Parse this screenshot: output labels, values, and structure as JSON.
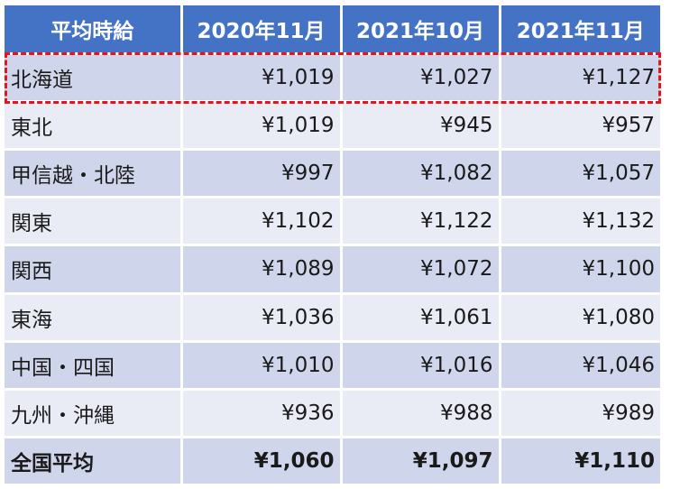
{
  "table": {
    "headers": [
      "平均時給",
      "2020年11月",
      "2021年10月",
      "2021年11月"
    ],
    "rows": [
      {
        "region": "北海道",
        "values": [
          "¥1,019",
          "¥1,027",
          "¥1,127"
        ],
        "highlighted": true
      },
      {
        "region": "東北",
        "values": [
          "¥1,019",
          "¥945",
          "¥957"
        ]
      },
      {
        "region": "甲信越・北陸",
        "values": [
          "¥997",
          "¥1,082",
          "¥1,057"
        ]
      },
      {
        "region": "関東",
        "values": [
          "¥1,102",
          "¥1,122",
          "¥1,132"
        ]
      },
      {
        "region": "関西",
        "values": [
          "¥1,089",
          "¥1,072",
          "¥1,100"
        ]
      },
      {
        "region": "東海",
        "values": [
          "¥1,036",
          "¥1,061",
          "¥1,080"
        ]
      },
      {
        "region": "中国・四国",
        "values": [
          "¥1,010",
          "¥1,016",
          "¥1,046"
        ]
      },
      {
        "region": "九州・沖縄",
        "values": [
          "¥936",
          "¥988",
          "¥989"
        ]
      }
    ],
    "total": {
      "region": "全国平均",
      "values": [
        "¥1,060",
        "¥1,097",
        "¥1,110"
      ]
    }
  },
  "colors": {
    "header_bg": "#4472c4",
    "band_dark": "#cfd5ea",
    "band_light": "#e9ebf5",
    "highlight_border": "#e8141c"
  }
}
